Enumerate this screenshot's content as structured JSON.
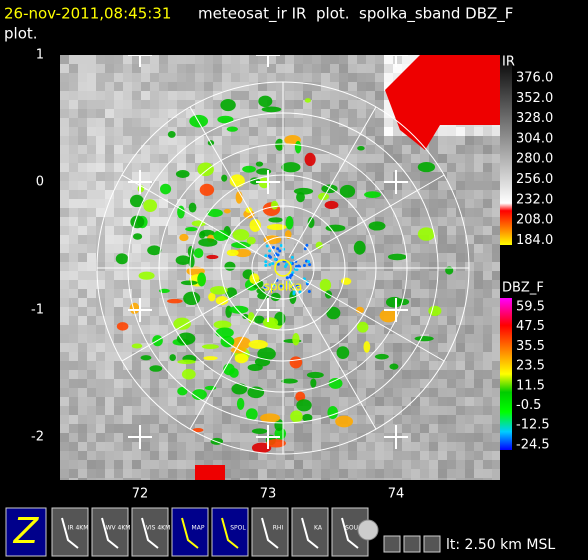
{
  "header": {
    "timestamp": "26-nov-2011,08:45:31",
    "title_line1": "meteosat_ir IR  plot.  spolka_sband DBZ_F",
    "title_line2": "plot."
  },
  "plot": {
    "y_labels": [
      "1",
      "0",
      "-1",
      "-2"
    ],
    "x_labels": [
      "72",
      "73",
      "74"
    ],
    "station": "spolka"
  },
  "colorbars": [
    {
      "label": "IR",
      "ticks": [
        "376.0",
        "352.0",
        "328.0",
        "304.0",
        "280.0",
        "256.0",
        "232.0",
        "208.0",
        "184.0"
      ]
    },
    {
      "label": "DBZ_F",
      "ticks": [
        "59.5",
        "47.5",
        "35.5",
        "23.5",
        "11.5",
        "-0.5",
        "-12.5",
        "-24.5"
      ]
    }
  ],
  "toolbar": {
    "buttons": [
      "IR 4KM",
      "WV 4KM",
      "VIS 4KM",
      "MAP",
      "SPOL",
      "RHI",
      "KA",
      "SOUNDS"
    ],
    "status": "lt: 2.50 km MSL"
  }
}
